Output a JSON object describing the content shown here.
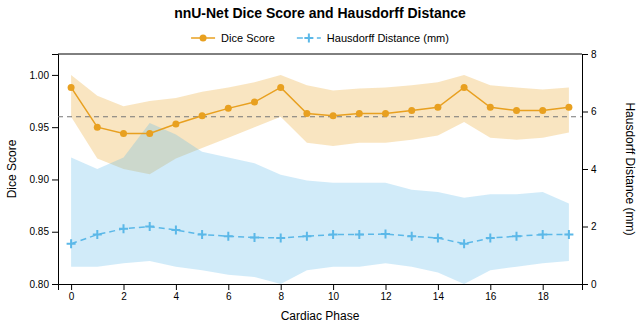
{
  "chart_data": {
    "type": "line",
    "title": "nnU-Net Dice Score and Hausdorff Distance",
    "xlabel": "Cardiac Phase",
    "ylabel": "Dice Score",
    "y2label": "Hausdorff Distance (mm)",
    "x": [
      0,
      1,
      2,
      3,
      4,
      5,
      6,
      7,
      8,
      9,
      10,
      11,
      12,
      13,
      14,
      15,
      16,
      17,
      18,
      19
    ],
    "series": [
      {
        "name": "Dice Score",
        "color": "#E8A020",
        "marker": "circle",
        "line_style": "solid",
        "values": [
          0.988,
          0.95,
          0.944,
          0.944,
          0.953,
          0.961,
          0.968,
          0.974,
          0.988,
          0.963,
          0.961,
          0.963,
          0.963,
          0.966,
          0.969,
          0.988,
          0.969,
          0.966,
          0.966,
          0.969
        ],
        "upper": [
          1.0,
          0.98,
          0.97,
          0.975,
          0.978,
          0.984,
          0.988,
          0.993,
          1.0,
          0.99,
          0.985,
          0.987,
          0.988,
          0.99,
          0.993,
          1.0,
          0.99,
          0.988,
          0.986,
          0.988
        ],
        "lower": [
          0.96,
          0.92,
          0.91,
          0.905,
          0.92,
          0.93,
          0.94,
          0.95,
          0.96,
          0.935,
          0.932,
          0.935,
          0.935,
          0.938,
          0.942,
          0.955,
          0.94,
          0.938,
          0.94,
          0.945
        ]
      },
      {
        "name": "Hausdorff Distance (mm)",
        "color": "#5BB8E8",
        "marker": "plus",
        "line_style": "dashed",
        "axis": "y2",
        "values": [
          1.4,
          1.72,
          1.92,
          2.0,
          1.88,
          1.72,
          1.66,
          1.62,
          1.6,
          1.66,
          1.72,
          1.72,
          1.74,
          1.66,
          1.6,
          1.4,
          1.6,
          1.66,
          1.72,
          1.72
        ],
        "upper": [
          4.4,
          4.0,
          4.4,
          5.6,
          5.2,
          4.6,
          4.4,
          4.2,
          3.8,
          3.6,
          3.52,
          3.52,
          3.52,
          3.28,
          3.2,
          3.0,
          3.12,
          3.12,
          3.2,
          2.8
        ],
        "lower": [
          0.6,
          0.6,
          0.72,
          0.8,
          0.6,
          0.48,
          0.32,
          0.24,
          0.0,
          0.48,
          0.6,
          0.6,
          0.72,
          0.6,
          0.4,
          0.0,
          0.48,
          0.6,
          0.72,
          0.8
        ]
      }
    ],
    "reference_line": 0.96,
    "xlim": [
      -0.5,
      19.5
    ],
    "xticks": [
      0,
      2,
      4,
      6,
      8,
      10,
      12,
      14,
      16,
      18
    ],
    "ylim": [
      0.8,
      1.02
    ],
    "yticks": [
      {
        "value": 0.8,
        "label": "0.80"
      },
      0.85,
      {
        "value": 0.9,
        "label": "0.90"
      },
      0.95,
      {
        "value": 1.0,
        "label": "1.00"
      }
    ],
    "y2lim": [
      0.0,
      8.0
    ],
    "y2ticks": [
      0,
      2,
      4,
      6,
      8
    ],
    "grid": false,
    "legend": "top"
  }
}
